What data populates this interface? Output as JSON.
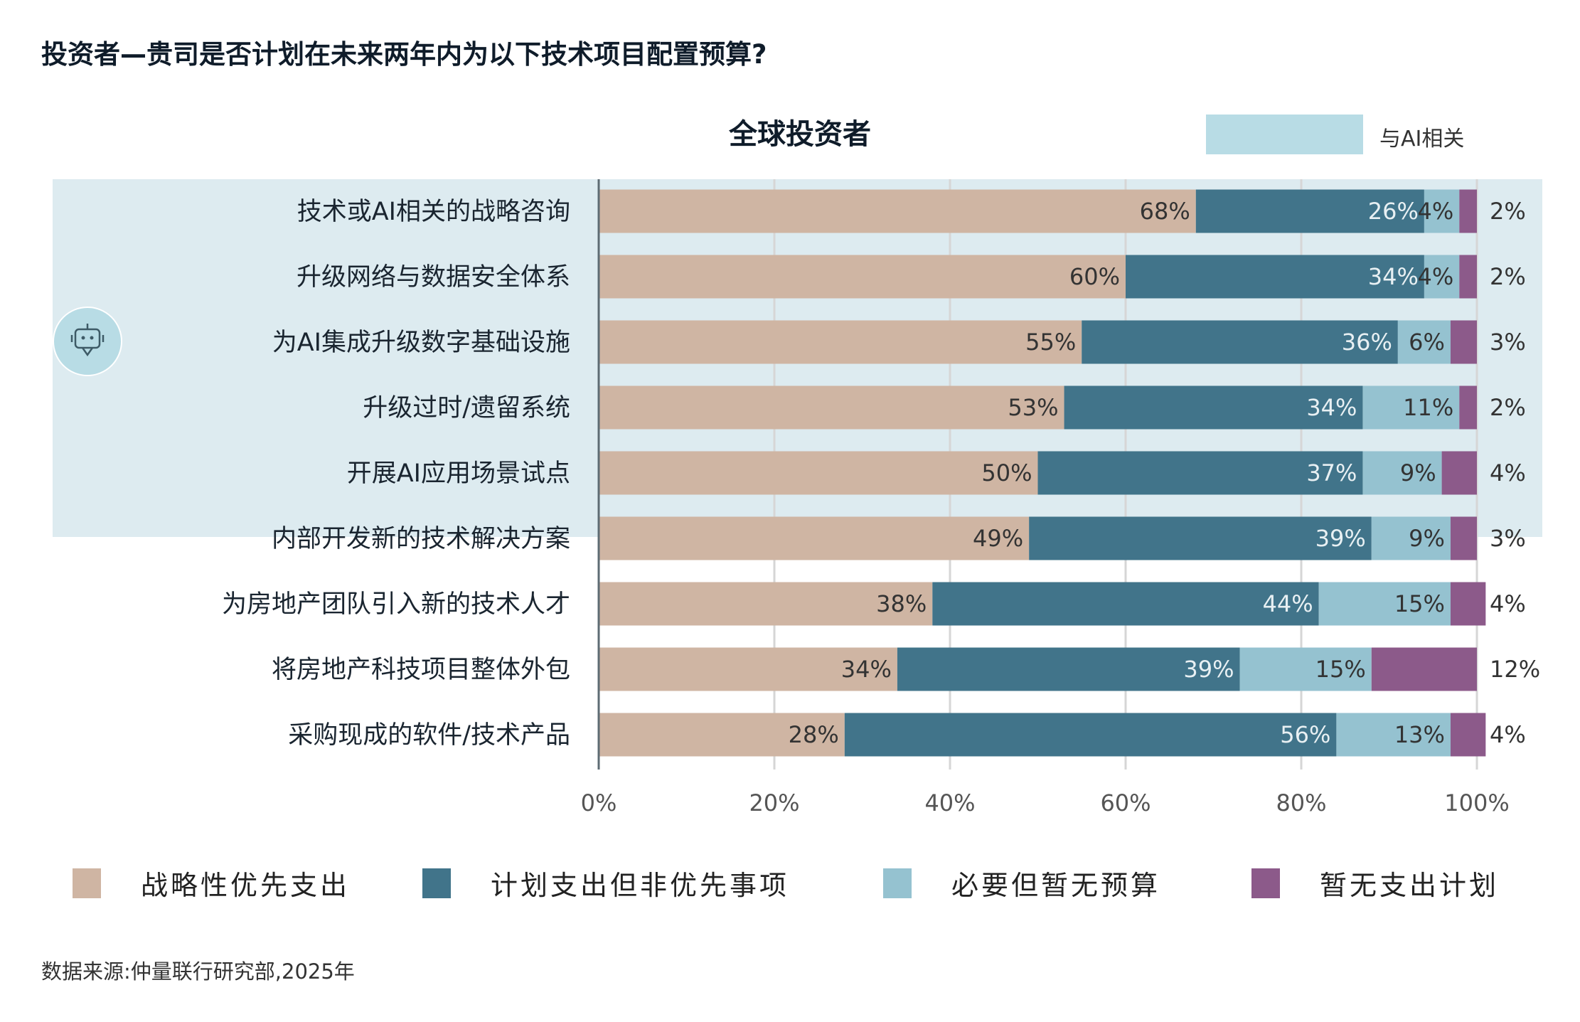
{
  "title": "投资者—贵司是否计划在未来两年内为以下技术项目配置预算?",
  "subtitle": "全球投资者",
  "ai_legend_label": "与AI相关",
  "source": "数据来源:仲量联行研究部,2025年",
  "chart_data": {
    "type": "bar",
    "orientation": "horizontal",
    "stacked": true,
    "title": "全球投资者",
    "categories": [
      "技术或AI相关的战略咨询",
      "升级网络与数据安全体系",
      "为AI集成升级数字基础设施",
      "升级过时/遗留系统",
      "开展AI应用场景试点",
      "内部开发新的技术解决方案",
      "为房地产团队引入新的技术人才",
      "将房地产科技项目整体外包",
      "采购现成的软件/技术产品"
    ],
    "ai_related": [
      true,
      true,
      true,
      true,
      true,
      false,
      false,
      false,
      false
    ],
    "series": [
      {
        "name": "战略性优先支出",
        "color": "#cfb5a3",
        "values": [
          68,
          60,
          55,
          53,
          50,
          49,
          38,
          34,
          28
        ]
      },
      {
        "name": "计划支出但非优先事项",
        "color": "#41748a",
        "values": [
          26,
          34,
          36,
          34,
          37,
          39,
          44,
          39,
          56
        ]
      },
      {
        "name": "必要但暂无预算",
        "color": "#95c2d0",
        "values": [
          4,
          4,
          6,
          11,
          9,
          9,
          15,
          15,
          13
        ]
      },
      {
        "name": "暂无支出计划",
        "color": "#8c5a8a",
        "values": [
          2,
          2,
          3,
          2,
          4,
          3,
          4,
          12,
          4
        ]
      }
    ],
    "xticks": [
      "0%",
      "20%",
      "40%",
      "60%",
      "80%",
      "100%"
    ],
    "xlim": [
      0,
      100
    ],
    "legend_position": "bottom",
    "grid": true
  },
  "colors": {
    "band": "#ddebf0",
    "ai_box": "#b8dce5",
    "grid": "#d6d6d6",
    "axis": "#5d6b73"
  }
}
